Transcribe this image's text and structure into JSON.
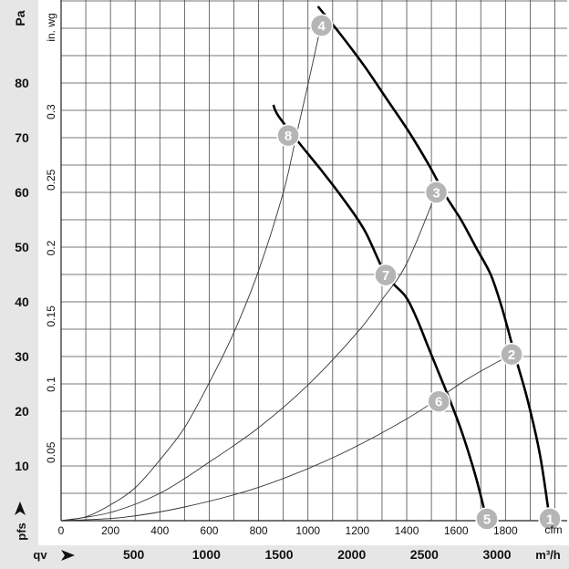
{
  "chart_data": {
    "type": "line",
    "x_units": {
      "primary": "cfm",
      "secondary": "m³/h",
      "secondary_prefix": "qv"
    },
    "y_units": {
      "primary": "Pa",
      "secondary": "in. wg",
      "primary_prefix": "pfs"
    },
    "xlim": [
      0,
      2050
    ],
    "ylim": [
      0,
      92
    ],
    "x_ticks": [
      "0",
      "200",
      "400",
      "600",
      "800",
      "1000",
      "1200",
      "1400",
      "1600",
      "1800"
    ],
    "x_ticks_m3h": [
      "500",
      "1000",
      "1500",
      "2000",
      "2500",
      "3000"
    ],
    "y_ticks": [
      "10",
      "20",
      "30",
      "40",
      "50",
      "60",
      "70",
      "80"
    ],
    "y_ticks_inwg": [
      "0.05",
      "0.1",
      "0.15",
      "0.2",
      "0.25",
      "0.3"
    ],
    "grid": true,
    "series": [
      {
        "style": "bold",
        "x": [
          1980,
          1940,
          1890,
          1840,
          1785,
          1740,
          1680,
          1620,
          1555,
          1490,
          1410,
          1320,
          1230,
          1130,
          1040
        ],
        "y": [
          0,
          12,
          22,
          30,
          39,
          45,
          50,
          55,
          59.6,
          65,
          71,
          77,
          83,
          89,
          94
        ]
      },
      {
        "style": "bold",
        "x": [
          1725,
          1680,
          1625,
          1575,
          1530,
          1485,
          1440,
          1395,
          1315,
          1230,
          1140,
          1055,
          965,
          880,
          860
        ],
        "y": [
          0,
          8,
          16,
          22,
          27,
          32,
          37,
          41,
          45,
          53,
          59,
          64,
          69,
          74,
          76
        ]
      },
      {
        "style": "thin",
        "x": [
          0,
          250,
          500,
          800,
          1100,
          1400,
          1650,
          1825
        ],
        "y": [
          0,
          0.6,
          2.5,
          6.1,
          11.5,
          18.6,
          26.0,
          30.4
        ]
      },
      {
        "style": "thin",
        "x": [
          0,
          200,
          400,
          600,
          800,
          1000,
          1200,
          1300,
          1400,
          1520
        ],
        "y": [
          0,
          1.5,
          5.0,
          10.7,
          17.0,
          24.8,
          34.4,
          40.4,
          47.0,
          60.0
        ]
      },
      {
        "style": "thin",
        "x": [
          0,
          100,
          200,
          300,
          400,
          500,
          600,
          700,
          800,
          900,
          950,
          1000,
          1050
        ],
        "y": [
          0,
          0.7,
          2.9,
          6.0,
          11.1,
          17.0,
          25.2,
          34.4,
          45.7,
          60.0,
          69.8,
          79.7,
          90.0
        ]
      }
    ],
    "points": [
      {
        "label": "1",
        "x": 1980,
        "y": 0
      },
      {
        "label": "2",
        "x": 1825,
        "y": 30.4
      },
      {
        "label": "3",
        "x": 1520,
        "y": 60.0
      },
      {
        "label": "4",
        "x": 1055,
        "y": 90.5
      },
      {
        "label": "5",
        "x": 1725,
        "y": 0
      },
      {
        "label": "6",
        "x": 1530,
        "y": 21.8
      },
      {
        "label": "7",
        "x": 1315,
        "y": 44.9
      },
      {
        "label": "8",
        "x": 920,
        "y": 70.4
      }
    ]
  }
}
